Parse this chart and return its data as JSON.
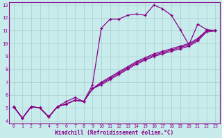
{
  "xlabel": "Windchill (Refroidissement éolien,°C)",
  "background_color": "#c8ecec",
  "line_color": "#880088",
  "grid_color": "#aacccc",
  "xlim": [
    -0.5,
    23.5
  ],
  "ylim": [
    3.8,
    13.2
  ],
  "xticks": [
    0,
    1,
    2,
    3,
    4,
    5,
    6,
    7,
    8,
    9,
    10,
    11,
    12,
    13,
    14,
    15,
    16,
    17,
    18,
    19,
    20,
    21,
    22,
    23
  ],
  "yticks": [
    4,
    5,
    6,
    7,
    8,
    9,
    10,
    11,
    12,
    13
  ],
  "series": [
    [
      5.1,
      4.2,
      5.1,
      5.0,
      4.3,
      5.1,
      5.5,
      5.8,
      5.5,
      6.8,
      11.2,
      11.9,
      11.9,
      12.2,
      12.3,
      12.2,
      13.0,
      12.7,
      12.2,
      11.1,
      9.9,
      11.5,
      11.1,
      11.0
    ],
    [
      5.1,
      4.2,
      5.1,
      5.0,
      4.3,
      5.1,
      5.3,
      5.6,
      5.5,
      6.5,
      6.8,
      7.2,
      7.6,
      8.0,
      8.4,
      8.7,
      9.0,
      9.2,
      9.4,
      9.6,
      9.8,
      10.2,
      10.9,
      11.0
    ],
    [
      5.1,
      4.2,
      5.1,
      5.0,
      4.3,
      5.1,
      5.3,
      5.6,
      5.5,
      6.5,
      6.9,
      7.3,
      7.7,
      8.1,
      8.5,
      8.8,
      9.1,
      9.3,
      9.5,
      9.7,
      9.9,
      10.3,
      11.0,
      11.0
    ],
    [
      5.1,
      4.2,
      5.1,
      5.0,
      4.3,
      5.1,
      5.3,
      5.6,
      5.5,
      6.5,
      7.0,
      7.4,
      7.8,
      8.2,
      8.6,
      8.9,
      9.2,
      9.4,
      9.6,
      9.8,
      10.0,
      10.4,
      11.0,
      11.0
    ]
  ]
}
